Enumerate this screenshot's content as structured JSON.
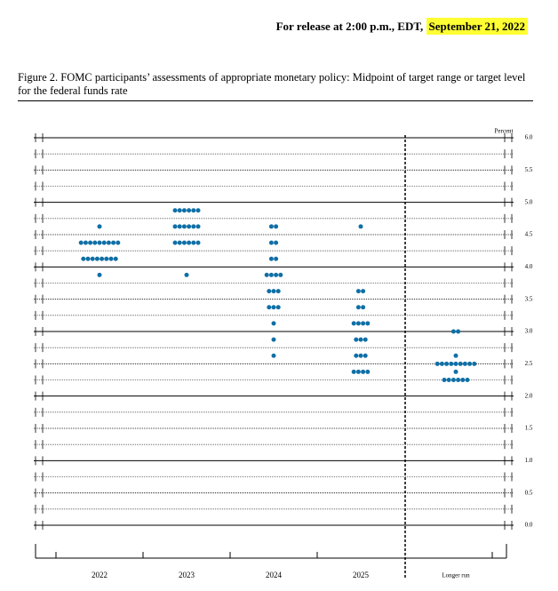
{
  "header": {
    "release": "For release at 2:00 p.m., EDT,",
    "date": "September 21, 2022"
  },
  "chart_data": {
    "type": "dot",
    "title": "Figure 2.  FOMC participants’ assessments of appropriate monetary policy: Midpoint of target range or target level for the federal funds rate",
    "y_label": "Percent",
    "categories": [
      "2022",
      "2023",
      "2024",
      "2025",
      "Longer run"
    ],
    "values": [
      [
        4.625,
        4.375,
        4.375,
        4.375,
        4.375,
        4.375,
        4.375,
        4.375,
        4.375,
        4.375,
        4.125,
        4.125,
        4.125,
        4.125,
        4.125,
        4.125,
        4.125,
        4.125,
        3.875
      ],
      [
        4.875,
        4.875,
        4.875,
        4.875,
        4.875,
        4.875,
        4.625,
        4.625,
        4.625,
        4.625,
        4.625,
        4.625,
        4.375,
        4.375,
        4.375,
        4.375,
        4.375,
        4.375,
        3.875
      ],
      [
        4.625,
        4.625,
        4.375,
        4.375,
        4.125,
        4.125,
        3.875,
        3.875,
        3.875,
        3.875,
        3.625,
        3.625,
        3.625,
        3.375,
        3.375,
        3.375,
        3.125,
        2.875,
        2.625
      ],
      [
        4.625,
        3.625,
        3.625,
        3.375,
        3.375,
        3.125,
        3.125,
        3.125,
        3.125,
        2.875,
        2.875,
        2.875,
        2.625,
        2.625,
        2.625,
        2.375,
        2.375,
        2.375,
        2.375
      ],
      [
        3.0,
        3.0,
        2.625,
        2.5,
        2.5,
        2.5,
        2.5,
        2.5,
        2.5,
        2.5,
        2.5,
        2.5,
        2.375,
        2.25,
        2.25,
        2.25,
        2.25,
        2.25,
        2.25
      ]
    ],
    "color": "#0f6fa6",
    "ylim": [
      0,
      6
    ],
    "yticks": [
      {
        "value": 0,
        "label": "0.0"
      },
      0.5,
      {
        "value": 1,
        "label": "1.0"
      },
      1.5,
      {
        "value": 2,
        "label": "2.0"
      },
      2.5,
      {
        "value": 3,
        "label": "3.0"
      },
      3.5,
      {
        "value": 4,
        "label": "4.0"
      },
      4.5,
      {
        "value": 5,
        "label": "5.0"
      },
      5.5,
      {
        "value": 6,
        "label": "6.0"
      }
    ],
    "minor_yticks": [
      0.25,
      0.75,
      1.25,
      1.75,
      2.25,
      2.75,
      3.25,
      3.75,
      4.25,
      4.75,
      5.25,
      5.75
    ]
  }
}
